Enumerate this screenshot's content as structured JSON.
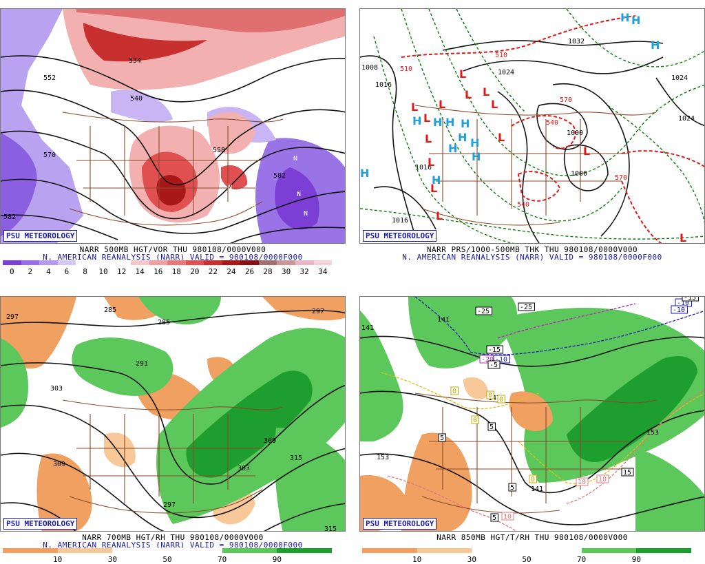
{
  "panels": [
    {
      "credit": "PSU METEOROLOGY",
      "title_line1": "NARR 500MB HGT/VOR THU 980108/0000V000",
      "title_line2": "N. AMERICAN REANALYSIS (NARR) VALID = 980108/0000F000",
      "colorbar_ticks": [
        "0",
        "2",
        "4",
        "6",
        "8",
        "10",
        "12",
        "14",
        "16",
        "18",
        "20",
        "22",
        "24",
        "26",
        "28",
        "30",
        "32",
        "34"
      ],
      "colorbar_colors": [
        "#7b3fd6",
        "#9a6ee6",
        "#b79af0",
        "#d6c8f6",
        "#ffffff",
        "#ffffff",
        "#ffffff",
        "#f7c8c8",
        "#f0a0a0",
        "#e87878",
        "#e05050",
        "#c83030",
        "#a81818",
        "#881010",
        "#a07070",
        "#c89898",
        "#e8b8c8",
        "#f4d4dc"
      ],
      "contour_labels": [
        "534",
        "540",
        "552",
        "570",
        "558",
        "582",
        "582"
      ],
      "symbols": [
        "N",
        "N",
        "N",
        "N",
        "N"
      ]
    },
    {
      "credit": "PSU METEOROLOGY",
      "title_line1": "NARR PRS/1000-500MB THK THU 980108/0000V000",
      "title_line2": "N. AMERICAN REANALYSIS (NARR) VALID = 980108/0000F000",
      "contour_labels": [
        "1008",
        "1016",
        "1024",
        "1032",
        "1024",
        "1024",
        "1016",
        "1000",
        "1000",
        "1016",
        "510",
        "510",
        "540",
        "570",
        "540",
        "570"
      ],
      "symbols": [
        "H",
        "L"
      ]
    },
    {
      "credit": "PSU METEOROLOGY",
      "title_line1": "NARR 700MB HGT/RH THU 980108/0000V000",
      "title_line2": "N. AMERICAN REANALYSIS (NARR) VALID = 980108/0000F000",
      "colorbar_ticks": [
        "10",
        "30",
        "50",
        "70",
        "90"
      ],
      "colorbar_colors": [
        "#f0a060",
        "#f8c898",
        "#ffffff",
        "#ffffff",
        "#5cc85c",
        "#1e9e2e"
      ],
      "contour_labels": [
        "297",
        "285",
        "285",
        "291",
        "303",
        "309",
        "309",
        "303",
        "315",
        "297",
        "297",
        "315"
      ]
    },
    {
      "credit": "PSU METEOROLOGY",
      "title_line1": "NARR 850MB HGT/T/RH THU 980108/0000V000",
      "colorbar_ticks": [
        "10",
        "30",
        "50",
        "70",
        "90"
      ],
      "colorbar_colors": [
        "#f0a060",
        "#f8c898",
        "#ffffff",
        "#ffffff",
        "#5cc85c",
        "#1e9e2e"
      ],
      "contour_labels": [
        "141",
        "141",
        "153",
        "153",
        "141",
        "147"
      ],
      "temp_labels": [
        "-25",
        "-25",
        "-15",
        "-20",
        "-10",
        "-5",
        "-10",
        "-15",
        "-10",
        "0",
        "0",
        "0",
        "0",
        "0",
        "5",
        "5",
        "5",
        "5",
        "10",
        "10",
        "10",
        "15"
      ]
    }
  ]
}
